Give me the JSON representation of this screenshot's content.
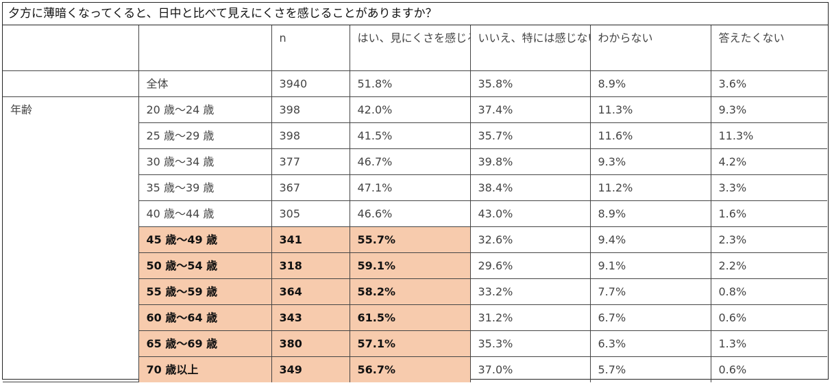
{
  "title": "夕方に薄暗くなってくると、日中と比べて見えにくさを感じることがありますか？",
  "headers": [
    "",
    "",
    "n",
    "はい、見にくさを感じる",
    "いいえ、特には感じない",
    "わからない",
    "答えたくない"
  ],
  "total_row": {
    "label": "全体",
    "n": "3940",
    "yes": "51.8%",
    "no": "35.8%",
    "unknown": "8.9%",
    "no_answer": "3.6%"
  },
  "group_label": "年齢",
  "rows": [
    {
      "label": "20 歳〜24 歳",
      "n": "398",
      "yes": "42.0%",
      "no": "37.4%",
      "unknown": "11.3%",
      "no_answer": "9.3%"
    },
    {
      "label": "25 歳〜29 歳",
      "n": "398",
      "yes": "41.5%",
      "no": "35.7%",
      "unknown": "11.6%",
      "no_answer": "11.3%"
    },
    {
      "label": "30 歳〜34 歳",
      "n": "377",
      "yes": "46.7%",
      "no": "39.8%",
      "unknown": "9.3%",
      "no_answer": "4.2%"
    },
    {
      "label": "35 歳〜39 歳",
      "n": "367",
      "yes": "47.1%",
      "no": "38.4%",
      "unknown": "11.2%",
      "no_answer": "3.3%"
    },
    {
      "label": "40 歳〜44 歳",
      "n": "305",
      "yes": "46.6%",
      "no": "43.0%",
      "unknown": "8.9%",
      "no_answer": "1.6%"
    },
    {
      "label": "45 歳〜49 歳",
      "n": "341",
      "yes": "55.7%",
      "no": "32.6%",
      "unknown": "9.4%",
      "no_answer": "2.3%"
    },
    {
      "label": "50 歳〜54 歳",
      "n": "318",
      "yes": "59.1%",
      "no": "29.6%",
      "unknown": "9.1%",
      "no_answer": "2.2%"
    },
    {
      "label": "55 歳〜59 歳",
      "n": "364",
      "yes": "58.2%",
      "no": "33.2%",
      "unknown": "7.7%",
      "no_answer": "0.8%"
    },
    {
      "label": "60 歳〜64 歳",
      "n": "343",
      "yes": "61.5%",
      "no": "31.2%",
      "unknown": "6.7%",
      "no_answer": "0.6%"
    },
    {
      "label": "65 歳〜69 歳",
      "n": "380",
      "yes": "57.1%",
      "no": "35.3%",
      "unknown": "6.3%",
      "no_answer": "1.3%"
    },
    {
      "label": "70 歳以上",
      "n": "349",
      "yes": "56.7%",
      "no": "37.0%",
      "unknown": "5.7%",
      "no_answer": "0.6%"
    }
  ],
  "colors": {
    "highlight": "#f7cbad",
    "border": "#444444"
  }
}
